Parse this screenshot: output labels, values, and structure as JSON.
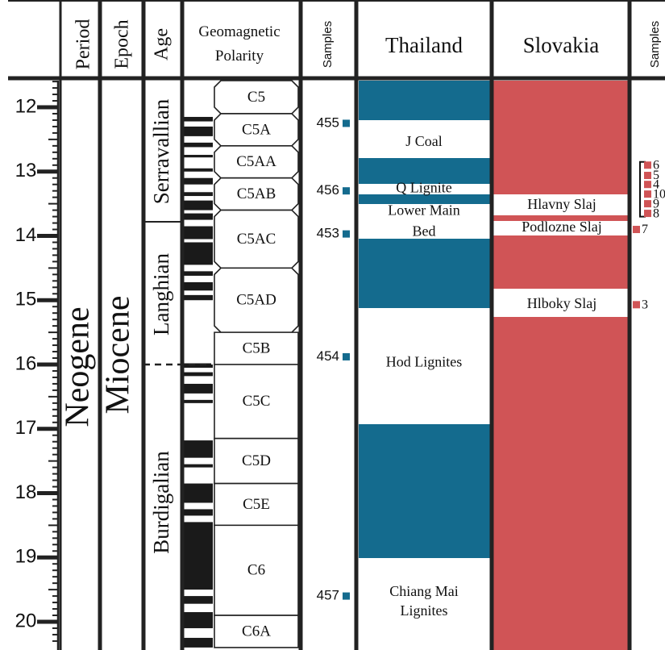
{
  "headers": {
    "period": "Period",
    "epoch": "Epoch",
    "age": "Age",
    "polarity_line1": "Geomagnetic",
    "polarity_line2": "Polarity",
    "samples_left": "Samples",
    "thailand": "Thailand",
    "slovakia": "Slovakia",
    "samples_right": "Samples"
  },
  "period_name": "Neogene",
  "epoch_name": "Miocene",
  "ages": [
    "Serravallian",
    "Langhian",
    "Burdigalian"
  ],
  "scale": {
    "unit_ticks": [
      12,
      13,
      14,
      15,
      16,
      17,
      18,
      19,
      20
    ],
    "min": 11.5,
    "max": 20.4
  },
  "chrons": [
    {
      "name": "C5",
      "top": 11.5,
      "bottom": 12.1
    },
    {
      "name": "C5A",
      "top": 12.1,
      "bottom": 12.6
    },
    {
      "name": "C5AA",
      "top": 12.6,
      "bottom": 13.1
    },
    {
      "name": "C5AB",
      "top": 13.1,
      "bottom": 13.6
    },
    {
      "name": "C5AC",
      "top": 13.6,
      "bottom": 14.5
    },
    {
      "name": "C5AD",
      "top": 14.5,
      "bottom": 15.5
    },
    {
      "name": "C5B",
      "top": 15.5,
      "bottom": 16.0
    },
    {
      "name": "C5C",
      "top": 16.0,
      "bottom": 17.15
    },
    {
      "name": "C5D",
      "top": 17.15,
      "bottom": 17.85
    },
    {
      "name": "C5E",
      "top": 17.85,
      "bottom": 18.5
    },
    {
      "name": "C6",
      "top": 18.5,
      "bottom": 19.9
    },
    {
      "name": "C6A",
      "top": 19.9,
      "bottom": 20.4
    }
  ],
  "samples_left": [
    {
      "id": "455",
      "age": 12.25
    },
    {
      "id": "456",
      "age": 13.3
    },
    {
      "id": "453",
      "age": 13.97
    },
    {
      "id": "454",
      "age": 15.88
    },
    {
      "id": "457",
      "age": 19.6
    }
  ],
  "thailand_units": [
    {
      "name": "J Coal",
      "age": 12.55
    },
    {
      "name": "Q Lignite",
      "age": 13.27
    },
    {
      "name": "Lower Main",
      "age": 13.62
    },
    {
      "name": "Bed",
      "age": 13.95
    },
    {
      "name": "Hod Lignites",
      "age": 15.98
    },
    {
      "name": "Chiang Mai",
      "age": 19.55
    },
    {
      "name": "Lignites",
      "age": 19.85
    }
  ],
  "slovakia_units": [
    {
      "name": "Hlavny Slaj",
      "age": 13.53
    },
    {
      "name": "Podlozne Slaj",
      "age": 13.88
    },
    {
      "name": "Hlboky Slaj",
      "age": 15.07
    }
  ],
  "samples_right": [
    {
      "id": "6",
      "age": 12.9
    },
    {
      "id": "5",
      "age": 13.06
    },
    {
      "id": "4",
      "age": 13.2
    },
    {
      "id": "10",
      "age": 13.35
    },
    {
      "id": "9",
      "age": 13.5
    },
    {
      "id": "8",
      "age": 13.65
    },
    {
      "id": "7",
      "age": 13.9
    },
    {
      "id": "3",
      "age": 15.07
    }
  ],
  "colors": {
    "thailand": "#146b8e",
    "slovakia": "#d05456",
    "border": "#222222"
  }
}
